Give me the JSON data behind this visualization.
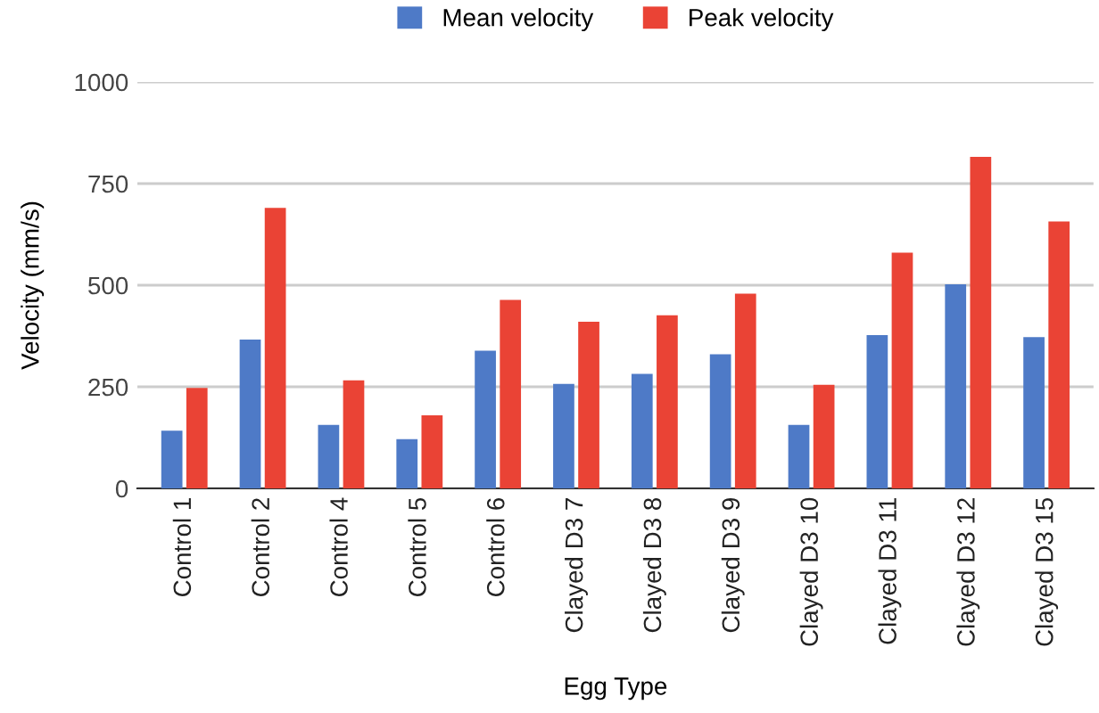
{
  "chart_data": {
    "type": "bar",
    "xlabel": "Egg Type",
    "ylabel": "Velocity (mm/s)",
    "categories": [
      "Control 1",
      "Control 2",
      "Control 4",
      "Control 5",
      "Control 6",
      "Clayed D3 7",
      "Clayed D3 8",
      "Clayed D3 9",
      "Clayed D3 10",
      "Clayed D3 11",
      "Clayed D3 12",
      "Clayed D3 15"
    ],
    "series": [
      {
        "name": "Mean velocity",
        "color": "#4e7ac7",
        "values": [
          142,
          366,
          156,
          121,
          339,
          257,
          282,
          330,
          156,
          377,
          502,
          372
        ]
      },
      {
        "name": "Peak velocity",
        "color": "#ea4335",
        "values": [
          247,
          690,
          266,
          180,
          464,
          410,
          426,
          479,
          255,
          580,
          816,
          657
        ]
      }
    ],
    "ylim": [
      0,
      1000
    ],
    "yticks": [
      0,
      250,
      500,
      750,
      1000
    ],
    "grid": "y",
    "legend": "top"
  }
}
